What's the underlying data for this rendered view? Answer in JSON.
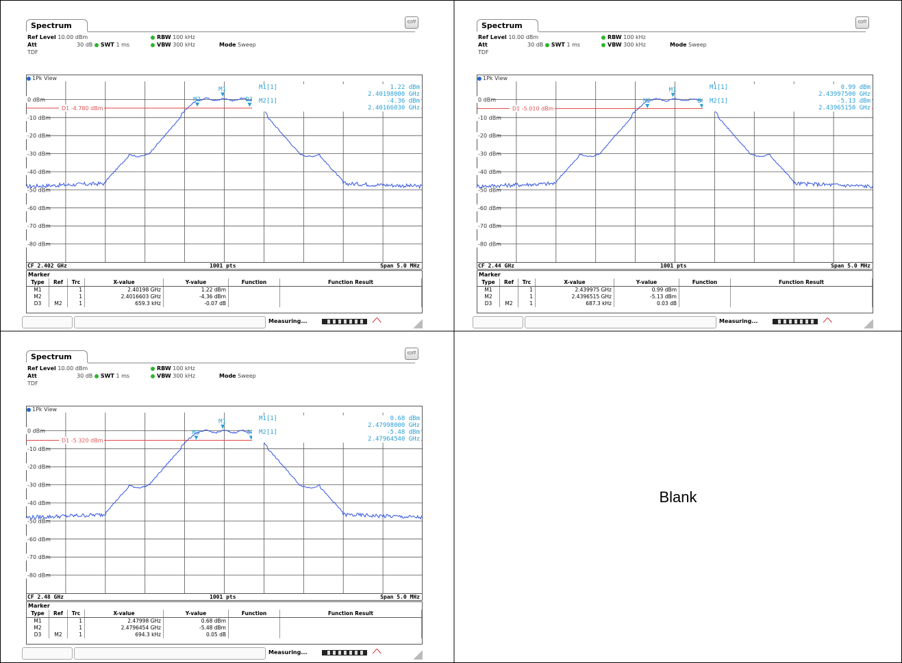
{
  "blank_label": "Blank",
  "colors": {
    "trace": "#2f52e0",
    "display_line": "#e04040",
    "marker": "#2a9fd6",
    "grid": "#555555"
  },
  "chart_data": [
    {
      "type": "line",
      "tab": "Spectrum",
      "ref_level_label": "Ref Level",
      "ref_level": "10.00 dBm",
      "att_label": "Att",
      "att": "30 dB",
      "swt_label": "SWT",
      "swt": "1 ms",
      "rbw_label": "RBW",
      "rbw": "100 kHz",
      "vbw_label": "VBW",
      "vbw": "300 kHz",
      "mode_label": "Mode",
      "mode": "Sweep",
      "tdf": "TDF",
      "view": "1Pk View",
      "ytick_labels": [
        "0 dBm",
        "-10 dBm",
        "-20 dBm",
        "-30 dBm",
        "-40 dBm",
        "-50 dBm",
        "-60 dBm",
        "-70 dBm",
        "-80 dBm"
      ],
      "ylim": [
        -90,
        10
      ],
      "d1_label": "D1  -4.780 dBm",
      "d1_value": -4.78,
      "m1_label": "M1[1]",
      "m1_level": "1.22 dBm",
      "m1_freq": "2.40198000 GHz",
      "m2_label": "M2[1]",
      "m2_level": "-4.36 dBm",
      "m2_freq": "2.40166030 GHz",
      "cf": "CF 2.402 GHz",
      "pts": "1001 pts",
      "span": "Span 5.0 MHz",
      "center_mhz": 2402.0,
      "span_mhz": 5.0,
      "markers": [
        {
          "type": "M1",
          "ref": "",
          "trc": "1",
          "x": "2.40198 GHz",
          "y": "1.22 dBm",
          "x_mhz": 2401.98,
          "y_db": 1.22
        },
        {
          "type": "M2",
          "ref": "",
          "trc": "1",
          "x": "2.4016603 GHz",
          "y": "-4.36 dBm",
          "x_mhz": 2401.66,
          "y_db": -4.36
        },
        {
          "type": "D3",
          "ref": "M2",
          "trc": "1",
          "x": "659.3 kHz",
          "y": "-0.07 dB",
          "x_mhz": 2402.3193,
          "y_db": -4.43
        }
      ]
    },
    {
      "type": "line",
      "tab": "Spectrum",
      "ref_level_label": "Ref Level",
      "ref_level": "10.00 dBm",
      "att_label": "Att",
      "att": "30 dB",
      "swt_label": "SWT",
      "swt": "1 ms",
      "rbw_label": "RBW",
      "rbw": "100 kHz",
      "vbw_label": "VBW",
      "vbw": "300 kHz",
      "mode_label": "Mode",
      "mode": "Sweep",
      "tdf": "TDF",
      "view": "1Pk View",
      "ytick_labels": [
        "0 dBm",
        "-10 dBm",
        "-20 dBm",
        "-30 dBm",
        "-40 dBm",
        "-50 dBm",
        "-60 dBm",
        "-70 dBm",
        "-80 dBm"
      ],
      "ylim": [
        -90,
        10
      ],
      "d1_label": "D1  -5.010 dBm",
      "d1_value": -5.01,
      "m1_label": "M1[1]",
      "m1_level": "0.99 dBm",
      "m1_freq": "2.43997500 GHz",
      "m2_label": "M2[1]",
      "m2_level": "-5.13 dBm",
      "m2_freq": "2.43965150 GHz",
      "cf": "CF 2.44 GHz",
      "pts": "1001 pts",
      "span": "Span 5.0 MHz",
      "center_mhz": 2440.0,
      "span_mhz": 5.0,
      "markers": [
        {
          "type": "M1",
          "ref": "",
          "trc": "1",
          "x": "2.439975 GHz",
          "y": "0.99 dBm",
          "x_mhz": 2439.975,
          "y_db": 0.99
        },
        {
          "type": "M2",
          "ref": "",
          "trc": "1",
          "x": "2.4396515 GHz",
          "y": "-5.13 dBm",
          "x_mhz": 2439.6515,
          "y_db": -5.13
        },
        {
          "type": "D3",
          "ref": "M2",
          "trc": "1",
          "x": "687.3 kHz",
          "y": "0.03 dB",
          "x_mhz": 2440.3388,
          "y_db": -5.1
        }
      ]
    },
    {
      "type": "line",
      "tab": "Spectrum",
      "ref_level_label": "Ref Level",
      "ref_level": "10.00 dBm",
      "att_label": "Att",
      "att": "30 dB",
      "swt_label": "SWT",
      "swt": "1 ms",
      "rbw_label": "RBW",
      "rbw": "100 kHz",
      "vbw_label": "VBW",
      "vbw": "300 kHz",
      "mode_label": "Mode",
      "mode": "Sweep",
      "tdf": "TDF",
      "view": "1Pk View",
      "ytick_labels": [
        "0 dBm",
        "-10 dBm",
        "-20 dBm",
        "-30 dBm",
        "-40 dBm",
        "-50 dBm",
        "-60 dBm",
        "-70 dBm",
        "-80 dBm"
      ],
      "ylim": [
        -90,
        10
      ],
      "d1_label": "D1  -5.320 dBm",
      "d1_value": -5.32,
      "m1_label": "M1[1]",
      "m1_level": "0.68 dBm",
      "m1_freq": "2.47998000 GHz",
      "m2_label": "M2[1]",
      "m2_level": "-5.48 dBm",
      "m2_freq": "2.47964540 GHz",
      "cf": "CF 2.48 GHz",
      "pts": "1001 pts",
      "span": "Span 5.0 MHz",
      "center_mhz": 2480.0,
      "span_mhz": 5.0,
      "markers": [
        {
          "type": "M1",
          "ref": "",
          "trc": "1",
          "x": "2.47998 GHz",
          "y": "0.68 dBm",
          "x_mhz": 2479.98,
          "y_db": 0.68
        },
        {
          "type": "M2",
          "ref": "",
          "trc": "1",
          "x": "2.4796454 GHz",
          "y": "-5.48 dBm",
          "x_mhz": 2479.6454,
          "y_db": -5.48
        },
        {
          "type": "D3",
          "ref": "M2",
          "trc": "1",
          "x": "694.3 kHz",
          "y": "0.05 dB",
          "x_mhz": 2480.3397,
          "y_db": -5.43
        }
      ]
    }
  ],
  "marker_table": {
    "title": "Marker",
    "headers": [
      "Type",
      "Ref",
      "Trc",
      "X-value",
      "Y-value",
      "Function",
      "Function Result"
    ]
  },
  "status": {
    "measuring": "Measuring..."
  }
}
